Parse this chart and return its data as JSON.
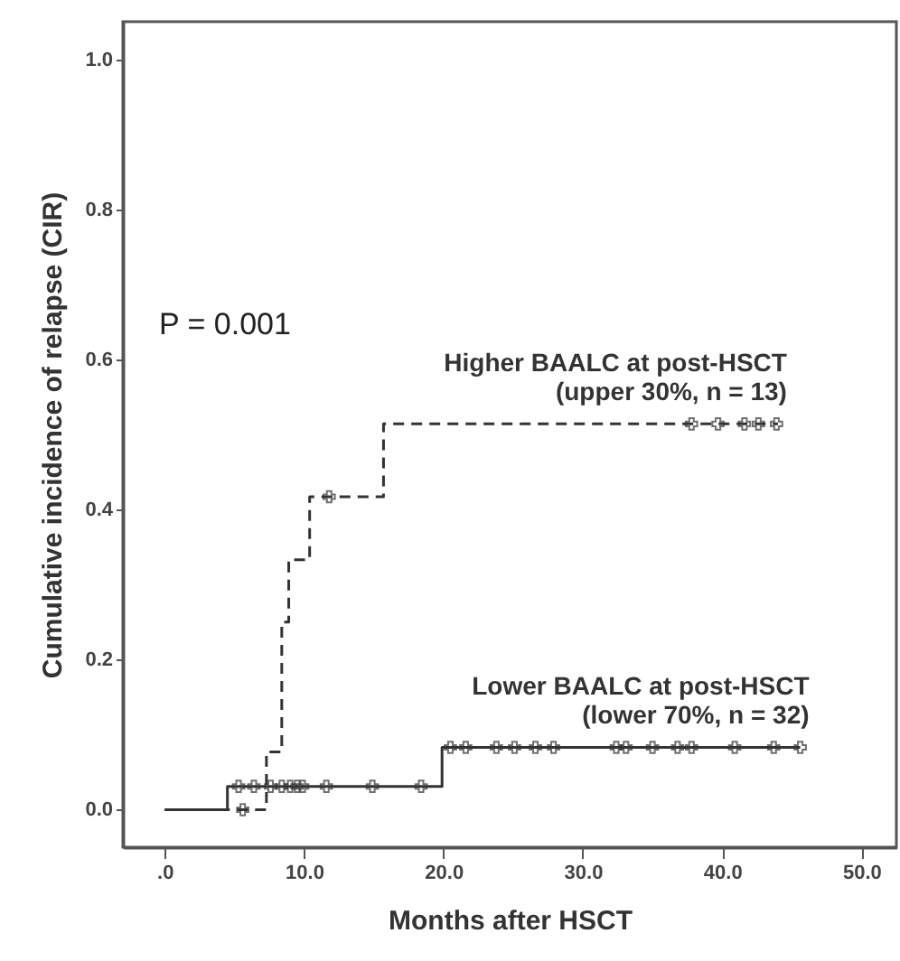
{
  "chart_data": {
    "type": "step",
    "xlabel": "Months after HSCT",
    "ylabel": "Cumulative incidence of relapse (CIR)",
    "xlim": [
      -3,
      52.5
    ],
    "ylim": [
      -0.05,
      1.05
    ],
    "xticks": [
      {
        "value": 0,
        "label": ".0"
      },
      {
        "value": 10,
        "label": "10.0"
      },
      {
        "value": 20,
        "label": "20.0"
      },
      {
        "value": 30,
        "label": "30.0"
      },
      {
        "value": 40,
        "label": "40.0"
      },
      {
        "value": 50,
        "label": "50.0"
      }
    ],
    "yticks": [
      {
        "value": 0,
        "label": "0.0"
      },
      {
        "value": 0.2,
        "label": "0.2"
      },
      {
        "value": 0.4,
        "label": "0.4"
      },
      {
        "value": 0.6,
        "label": "0.6"
      },
      {
        "value": 0.8,
        "label": "0.8"
      },
      {
        "value": 1,
        "label": "1.0"
      }
    ],
    "grid": false,
    "annotations": [
      "P = 0.001"
    ],
    "series": [
      {
        "name": "Higher BAALC at post-HSCT\n(upper 30%, n = 13)",
        "color": "#333333",
        "line_style": "dashed",
        "x": [
          0,
          7.3,
          8.4,
          8.9,
          10.4,
          15.7,
          44
        ],
        "values": [
          0,
          0.077,
          0.25,
          0.333,
          0.417,
          0.514,
          0.514
        ]
      },
      {
        "name": "Lower BAALC at post-HSCT\n(lower 70%, n = 32)",
        "color": "#333333",
        "line_style": "solid",
        "x": [
          0,
          4.5,
          19.9,
          45.6
        ],
        "values": [
          0,
          0.031,
          0.083,
          0.083
        ]
      },
      {
        "type": "scatter",
        "marker": "cross",
        "color": "#333333",
        "x": [
          5.6,
          11.8,
          37.8,
          39.7,
          41.6,
          42.6,
          43.9
        ],
        "values": [
          0,
          0.417,
          0.514,
          0.514,
          0.514,
          0.514,
          0.514
        ]
      },
      {
        "type": "scatter",
        "marker": "cross",
        "color": "#333333",
        "x": [
          5.3,
          6.4,
          7.6,
          8.4,
          9.0,
          9.5,
          9.9,
          11.6,
          14.9,
          18.4,
          20.5,
          21.6,
          23.8,
          25.1,
          26.6,
          27.9,
          32.4,
          33.1,
          35.0,
          36.8,
          37.8,
          40.9,
          43.7,
          45.6
        ],
        "values": [
          0.031,
          0.031,
          0.031,
          0.031,
          0.031,
          0.031,
          0.031,
          0.031,
          0.031,
          0.031,
          0.083,
          0.083,
          0.083,
          0.083,
          0.083,
          0.083,
          0.083,
          0.083,
          0.083,
          0.083,
          0.083,
          0.083,
          0.083,
          0.083
        ]
      }
    ]
  }
}
